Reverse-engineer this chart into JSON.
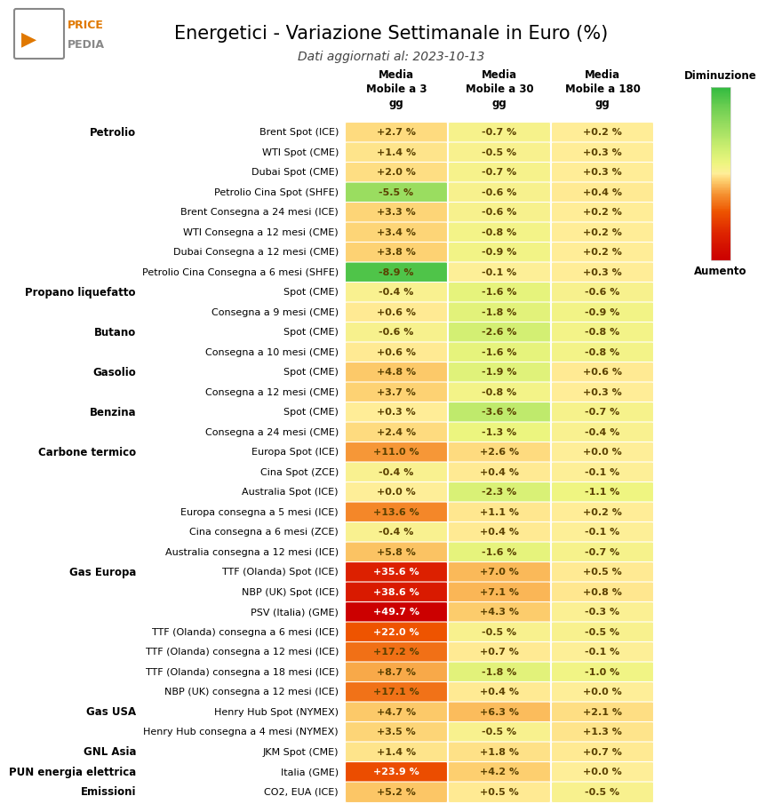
{
  "title": "Energetici - Variazione Settimanale in Euro (%)",
  "subtitle": "Dati aggiornati al: 2023-10-13",
  "col_headers": [
    "Media\nMobile a 3\ngg",
    "Media\nMobile a 30\ngg",
    "Media\nMobile a 180\ngg"
  ],
  "categories": [
    {
      "group": "Petrolio",
      "label": "Brent Spot (ICE)",
      "values": [
        2.7,
        -0.7,
        0.2
      ]
    },
    {
      "group": "",
      "label": "WTI Spot (CME)",
      "values": [
        1.4,
        -0.5,
        0.3
      ]
    },
    {
      "group": "",
      "label": "Dubai Spot (CME)",
      "values": [
        2.0,
        -0.7,
        0.3
      ]
    },
    {
      "group": "",
      "label": "Petrolio Cina Spot (SHFE)",
      "values": [
        -5.5,
        -0.6,
        0.4
      ]
    },
    {
      "group": "",
      "label": "Brent Consegna a 24 mesi (ICE)",
      "values": [
        3.3,
        -0.6,
        0.2
      ]
    },
    {
      "group": "",
      "label": "WTI Consegna a 12 mesi (CME)",
      "values": [
        3.4,
        -0.8,
        0.2
      ]
    },
    {
      "group": "",
      "label": "Dubai Consegna a 12 mesi (CME)",
      "values": [
        3.8,
        -0.9,
        0.2
      ]
    },
    {
      "group": "",
      "label": "Petrolio Cina Consegna a 6 mesi (SHFE)",
      "values": [
        -8.9,
        -0.1,
        0.3
      ]
    },
    {
      "group": "Propano liquefatto",
      "label": "Spot (CME)",
      "values": [
        -0.4,
        -1.6,
        -0.6
      ]
    },
    {
      "group": "",
      "label": "Consegna a 9 mesi (CME)",
      "values": [
        0.6,
        -1.8,
        -0.9
      ]
    },
    {
      "group": "Butano",
      "label": "Spot (CME)",
      "values": [
        -0.6,
        -2.6,
        -0.8
      ]
    },
    {
      "group": "",
      "label": "Consegna a 10 mesi (CME)",
      "values": [
        0.6,
        -1.6,
        -0.8
      ]
    },
    {
      "group": "Gasolio",
      "label": "Spot (CME)",
      "values": [
        4.8,
        -1.9,
        0.6
      ]
    },
    {
      "group": "",
      "label": "Consegna a 12 mesi (CME)",
      "values": [
        3.7,
        -0.8,
        0.3
      ]
    },
    {
      "group": "Benzina",
      "label": "Spot (CME)",
      "values": [
        0.3,
        -3.6,
        -0.7
      ]
    },
    {
      "group": "",
      "label": "Consegna a 24 mesi (CME)",
      "values": [
        2.4,
        -1.3,
        -0.4
      ]
    },
    {
      "group": "Carbone termico",
      "label": "Europa Spot (ICE)",
      "values": [
        11.0,
        2.6,
        0.0
      ]
    },
    {
      "group": "",
      "label": "Cina Spot (ZCE)",
      "values": [
        -0.4,
        0.4,
        -0.1
      ]
    },
    {
      "group": "",
      "label": "Australia Spot (ICE)",
      "values": [
        0.0,
        -2.3,
        -1.1
      ]
    },
    {
      "group": "",
      "label": "Europa consegna a 5 mesi (ICE)",
      "values": [
        13.6,
        1.1,
        0.2
      ]
    },
    {
      "group": "",
      "label": "Cina consegna a 6 mesi (ZCE)",
      "values": [
        -0.4,
        0.4,
        -0.1
      ]
    },
    {
      "group": "",
      "label": "Australia consegna a 12 mesi (ICE)",
      "values": [
        5.8,
        -1.6,
        -0.7
      ]
    },
    {
      "group": "Gas Europa",
      "label": "TTF (Olanda) Spot (ICE)",
      "values": [
        35.6,
        7.0,
        0.5
      ]
    },
    {
      "group": "",
      "label": "NBP (UK) Spot (ICE)",
      "values": [
        38.6,
        7.1,
        0.8
      ]
    },
    {
      "group": "",
      "label": "PSV (Italia) (GME)",
      "values": [
        49.7,
        4.3,
        -0.3
      ]
    },
    {
      "group": "",
      "label": "TTF (Olanda) consegna a 6 mesi (ICE)",
      "values": [
        22.0,
        -0.5,
        -0.5
      ]
    },
    {
      "group": "",
      "label": "TTF (Olanda) consegna a 12 mesi (ICE)",
      "values": [
        17.2,
        0.7,
        -0.1
      ]
    },
    {
      "group": "",
      "label": "TTF (Olanda) consegna a 18 mesi (ICE)",
      "values": [
        8.7,
        -1.8,
        -1.0
      ]
    },
    {
      "group": "",
      "label": "NBP (UK) consegna a 12 mesi (ICE)",
      "values": [
        17.1,
        0.4,
        0.0
      ]
    },
    {
      "group": "Gas USA",
      "label": "Henry Hub Spot (NYMEX)",
      "values": [
        4.7,
        6.3,
        2.1
      ]
    },
    {
      "group": "",
      "label": "Henry Hub consegna a 4 mesi (NYMEX)",
      "values": [
        3.5,
        -0.5,
        1.3
      ]
    },
    {
      "group": "GNL Asia",
      "label": "JKM Spot (CME)",
      "values": [
        1.4,
        1.8,
        0.7
      ]
    },
    {
      "group": "PUN energia elettrica",
      "label": "Italia (GME)",
      "values": [
        23.9,
        4.2,
        0.0
      ]
    },
    {
      "group": "Emissioni",
      "label": "CO2, EUA (ICE)",
      "values": [
        5.2,
        0.5,
        -0.5
      ]
    }
  ],
  "colorbar_label_top": "Diminuzione",
  "colorbar_label_bottom": "Aumento",
  "background_color": "#ffffff",
  "text_color_dark": "#000000",
  "title_fontsize": 15,
  "subtitle_fontsize": 10,
  "cell_fontsize": 8,
  "label_fontsize": 8,
  "group_fontsize": 8.5,
  "header_fontsize": 8.5
}
